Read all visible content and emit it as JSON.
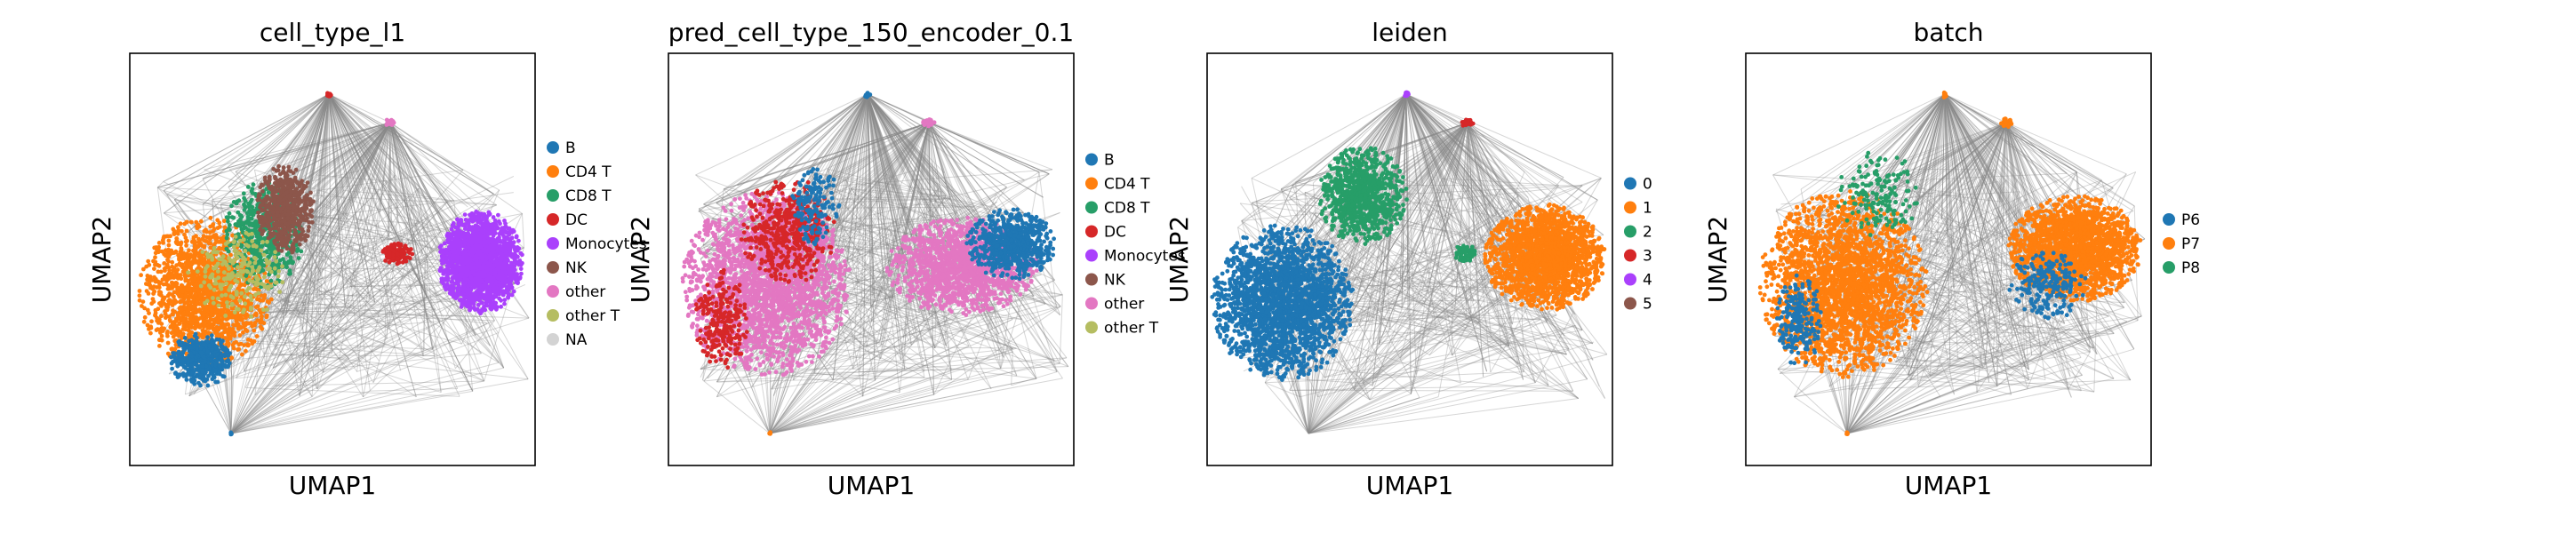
{
  "figure": {
    "panels": [
      {
        "title": "cell_type_l1",
        "xlabel": "UMAP1",
        "ylabel": "UMAP2",
        "legend": [
          {
            "label": "B",
            "color": "#1f77b4"
          },
          {
            "label": "CD4 T",
            "color": "#ff7f0e"
          },
          {
            "label": "CD8 T",
            "color": "#279e68"
          },
          {
            "label": "DC",
            "color": "#d62728"
          },
          {
            "label": "Monocytes",
            "color": "#aa40fc"
          },
          {
            "label": "NK",
            "color": "#8c564b"
          },
          {
            "label": "other",
            "color": "#e377c2"
          },
          {
            "label": "other T",
            "color": "#b5bd61"
          },
          {
            "label": "NA",
            "color": "#d3d3d3"
          }
        ]
      },
      {
        "title": "pred_cell_type_150_encoder_0.1",
        "xlabel": "UMAP1",
        "ylabel": "UMAP2",
        "legend": [
          {
            "label": "B",
            "color": "#1f77b4"
          },
          {
            "label": "CD4 T",
            "color": "#ff7f0e"
          },
          {
            "label": "CD8 T",
            "color": "#279e68"
          },
          {
            "label": "DC",
            "color": "#d62728"
          },
          {
            "label": "Monocytes",
            "color": "#aa40fc"
          },
          {
            "label": "NK",
            "color": "#8c564b"
          },
          {
            "label": "other",
            "color": "#e377c2"
          },
          {
            "label": "other T",
            "color": "#b5bd61"
          }
        ]
      },
      {
        "title": "leiden",
        "xlabel": "UMAP1",
        "ylabel": "UMAP2",
        "legend": [
          {
            "label": "0",
            "color": "#1f77b4"
          },
          {
            "label": "1",
            "color": "#ff7f0e"
          },
          {
            "label": "2",
            "color": "#279e68"
          },
          {
            "label": "3",
            "color": "#d62728"
          },
          {
            "label": "4",
            "color": "#aa40fc"
          },
          {
            "label": "5",
            "color": "#8c564b"
          }
        ]
      },
      {
        "title": "batch",
        "xlabel": "UMAP1",
        "ylabel": "UMAP2",
        "legend": [
          {
            "label": "P6",
            "color": "#1f77b4"
          },
          {
            "label": "P7",
            "color": "#ff7f0e"
          },
          {
            "label": "P8",
            "color": "#279e68"
          }
        ]
      }
    ]
  },
  "chart_data": [
    {
      "type": "scatter",
      "title": "cell_type_l1",
      "xlabel": "UMAP1",
      "ylabel": "UMAP2",
      "grid": false,
      "axis_ticks": false,
      "legend_position": "right",
      "edges": "grey PAGA-style connectivity lines between clusters",
      "series": [
        {
          "name": "B",
          "color": "#1f77b4"
        },
        {
          "name": "CD4 T",
          "color": "#ff7f0e"
        },
        {
          "name": "CD8 T",
          "color": "#279e68"
        },
        {
          "name": "DC",
          "color": "#d62728"
        },
        {
          "name": "Monocytes",
          "color": "#aa40fc"
        },
        {
          "name": "NK",
          "color": "#8c564b"
        },
        {
          "name": "other",
          "color": "#e377c2"
        },
        {
          "name": "other T",
          "color": "#b5bd61"
        },
        {
          "name": "NA",
          "color": "#d3d3d3"
        }
      ]
    },
    {
      "type": "scatter",
      "title": "pred_cell_type_150_encoder_0.1",
      "xlabel": "UMAP1",
      "ylabel": "UMAP2",
      "grid": false,
      "axis_ticks": false,
      "legend_position": "right",
      "series": [
        {
          "name": "B",
          "color": "#1f77b4"
        },
        {
          "name": "CD4 T",
          "color": "#ff7f0e"
        },
        {
          "name": "CD8 T",
          "color": "#279e68"
        },
        {
          "name": "DC",
          "color": "#d62728"
        },
        {
          "name": "Monocytes",
          "color": "#aa40fc"
        },
        {
          "name": "NK",
          "color": "#8c564b"
        },
        {
          "name": "other",
          "color": "#e377c2"
        },
        {
          "name": "other T",
          "color": "#b5bd61"
        }
      ]
    },
    {
      "type": "scatter",
      "title": "leiden",
      "xlabel": "UMAP1",
      "ylabel": "UMAP2",
      "grid": false,
      "axis_ticks": false,
      "legend_position": "right",
      "series": [
        {
          "name": "0",
          "color": "#1f77b4"
        },
        {
          "name": "1",
          "color": "#ff7f0e"
        },
        {
          "name": "2",
          "color": "#279e68"
        },
        {
          "name": "3",
          "color": "#d62728"
        },
        {
          "name": "4",
          "color": "#aa40fc"
        },
        {
          "name": "5",
          "color": "#8c564b"
        }
      ]
    },
    {
      "type": "scatter",
      "title": "batch",
      "xlabel": "UMAP1",
      "ylabel": "UMAP2",
      "grid": false,
      "axis_ticks": false,
      "legend_position": "right",
      "series": [
        {
          "name": "P6",
          "color": "#1f77b4"
        },
        {
          "name": "P7",
          "color": "#ff7f0e"
        },
        {
          "name": "P8",
          "color": "#279e68"
        }
      ]
    }
  ]
}
